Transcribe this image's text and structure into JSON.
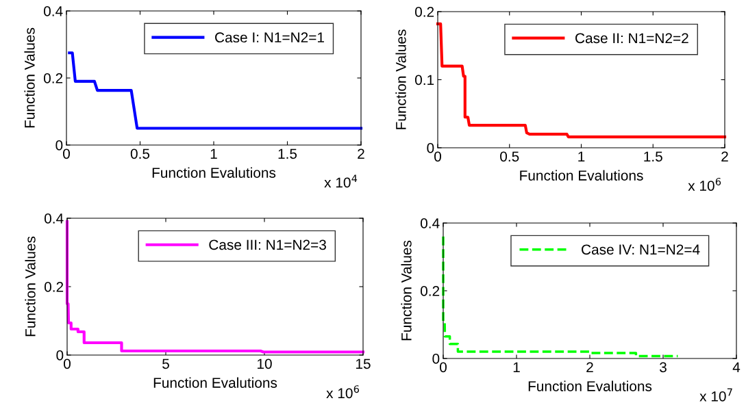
{
  "chart_data": [
    {
      "type": "line",
      "xlabel": "Function Evalutions",
      "ylabel": "Function Values",
      "annotations": [
        "x 10$^{4}$"
      ],
      "legend": "top right",
      "line_style": "solid",
      "xlim": [
        0,
        2
      ],
      "ylim": [
        0,
        0.4
      ],
      "xticks": [
        0,
        0.5,
        1,
        1.5,
        2
      ],
      "yticks": [
        0,
        0.2,
        0.4
      ],
      "series": [
        {
          "name": "Case I: N1=N2=1",
          "color": "#0000ff",
          "x": [
            0.02,
            0.04,
            0.06,
            0.19,
            0.21,
            0.44,
            0.48,
            2
          ],
          "values": [
            0.275,
            0.275,
            0.19,
            0.19,
            0.163,
            0.163,
            0.05,
            0.05
          ]
        }
      ]
    },
    {
      "type": "line",
      "xlabel": "Function Evalutions",
      "ylabel": "Function Values",
      "annotations": [
        "x 10$^{6}$"
      ],
      "legend": "top right",
      "line_style": "solid",
      "xlim": [
        0,
        2
      ],
      "ylim": [
        0,
        0.2
      ],
      "xticks": [
        0,
        0.5,
        1,
        1.5,
        2
      ],
      "yticks": [
        0,
        0.1,
        0.2
      ],
      "series": [
        {
          "name": "Case II: N1=N2=2",
          "color": "#ff0000",
          "x": [
            0,
            0.02,
            0.03,
            0.17,
            0.18,
            0.19,
            0.19,
            0.21,
            0.22,
            0.61,
            0.62,
            0.64,
            0.9,
            0.91,
            2
          ],
          "values": [
            0.182,
            0.182,
            0.12,
            0.12,
            0.105,
            0.105,
            0.045,
            0.045,
            0.033,
            0.033,
            0.022,
            0.02,
            0.02,
            0.016,
            0.016
          ]
        }
      ]
    },
    {
      "type": "line",
      "xlabel": "Function Evalutions",
      "ylabel": "Function Values",
      "annotations": [
        "x 10$^{6}$"
      ],
      "legend": "top right",
      "line_style": "solid",
      "xlim": [
        0,
        15
      ],
      "ylim": [
        0,
        0.4
      ],
      "xticks": [
        0,
        5,
        10,
        15
      ],
      "yticks": [
        0,
        0.2,
        0.4
      ],
      "series": [
        {
          "name": "Case III: N1=N2=3",
          "color": "#ff00ff",
          "x": [
            0,
            0,
            0.05,
            0.07,
            0.2,
            0.2,
            0.55,
            0.55,
            0.86,
            0.86,
            2.76,
            2.76,
            9.8,
            9.95,
            15
          ],
          "values": [
            0.39,
            0.15,
            0.15,
            0.094,
            0.094,
            0.076,
            0.076,
            0.068,
            0.068,
            0.036,
            0.036,
            0.012,
            0.012,
            0.009,
            0.009
          ]
        }
      ]
    },
    {
      "type": "line",
      "xlabel": "Function Evalutions",
      "ylabel": "Function Values",
      "annotations": [
        "x 10$^{7}$"
      ],
      "legend": "top right",
      "line_style": "dashed",
      "xlim": [
        0,
        4
      ],
      "ylim": [
        0,
        0.4
      ],
      "xticks": [
        0,
        1,
        2,
        3,
        4
      ],
      "yticks": [
        0,
        0.2,
        0.4
      ],
      "series": [
        {
          "name": "Case IV: N1=N2=4",
          "color": "#00ff00",
          "x": [
            0,
            0,
            0.02,
            0.023,
            0.09,
            0.09,
            0.2,
            0.2,
            2,
            2,
            2.63,
            2.63,
            3.2
          ],
          "values": [
            0.36,
            0.11,
            0.11,
            0.065,
            0.065,
            0.043,
            0.043,
            0.02,
            0.02,
            0.016,
            0.016,
            0.007,
            0.007
          ]
        }
      ]
    }
  ]
}
